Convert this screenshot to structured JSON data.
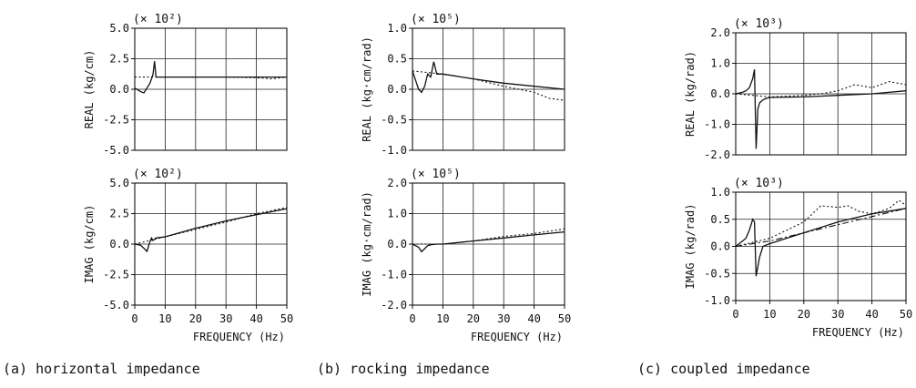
{
  "chart_data": [
    {
      "id": "a_real",
      "type": "line",
      "panel": "(a)",
      "multiplier": "(× 10²)",
      "ylabel": "REAL (kg/cm)",
      "ylim": [
        -5.0,
        5.0
      ],
      "yticks": [
        "5.0",
        "2.5",
        "0.0",
        "-2.5",
        "-5.0"
      ],
      "xlim": [
        0,
        50
      ],
      "xticks": [],
      "grid": true,
      "series": [
        {
          "style": "solid",
          "x": [
            0,
            2,
            3,
            4,
            5,
            6,
            6.5,
            7,
            8,
            10,
            20,
            30,
            40,
            45,
            50
          ],
          "y": [
            0.1,
            -0.2,
            -0.3,
            0.1,
            0.5,
            1.2,
            2.3,
            1.0,
            1.0,
            1.0,
            1.0,
            1.0,
            1.0,
            1.0,
            1.0
          ]
        },
        {
          "style": "dashed",
          "x": [
            0,
            10,
            20,
            30,
            40,
            45,
            50
          ],
          "y": [
            1.0,
            1.0,
            1.0,
            1.0,
            0.95,
            0.85,
            1.0
          ]
        }
      ]
    },
    {
      "id": "a_imag",
      "type": "line",
      "panel": "(a)",
      "multiplier": "(× 10²)",
      "ylabel": "IMAG (kg/cm)",
      "ylim": [
        -5.0,
        5.0
      ],
      "yticks": [
        "5.0",
        "2.5",
        "0.0",
        "-2.5",
        "-5.0"
      ],
      "xlim": [
        0,
        50
      ],
      "xticks": [
        "0",
        "10",
        "20",
        "30",
        "40",
        "50"
      ],
      "xlabel": "FREQUENCY (Hz)",
      "grid": true,
      "series": [
        {
          "style": "solid",
          "x": [
            0,
            2,
            4,
            5,
            5.5,
            6,
            7,
            10,
            20,
            30,
            40,
            50
          ],
          "y": [
            0.0,
            -0.1,
            -0.6,
            0.2,
            0.5,
            0.3,
            0.5,
            0.6,
            1.3,
            1.9,
            2.4,
            2.9
          ]
        },
        {
          "style": "dashed",
          "x": [
            0,
            10,
            20,
            30,
            40,
            50
          ],
          "y": [
            0.0,
            0.6,
            1.2,
            1.8,
            2.5,
            3.0
          ]
        }
      ]
    },
    {
      "id": "b_real",
      "type": "line",
      "panel": "(b)",
      "multiplier": "(× 10⁵)",
      "ylabel": "REAL (kg·cm/rad)",
      "ylim": [
        -1.0,
        1.0
      ],
      "yticks": [
        "1.0",
        "0.5",
        "0.0",
        "-0.5",
        "-1.0"
      ],
      "xlim": [
        0,
        50
      ],
      "xticks": [],
      "grid": true,
      "series": [
        {
          "style": "solid",
          "x": [
            0,
            2,
            3,
            4,
            5,
            6,
            7,
            8,
            10,
            20,
            30,
            40,
            50
          ],
          "y": [
            0.3,
            0.0,
            -0.05,
            0.05,
            0.25,
            0.2,
            0.45,
            0.25,
            0.25,
            0.17,
            0.1,
            0.05,
            0.0
          ]
        },
        {
          "style": "dashed",
          "x": [
            0,
            10,
            20,
            30,
            40,
            45,
            50
          ],
          "y": [
            0.3,
            0.25,
            0.17,
            0.05,
            -0.05,
            -0.15,
            -0.18
          ]
        }
      ]
    },
    {
      "id": "b_imag",
      "type": "line",
      "panel": "(b)",
      "multiplier": "(× 10⁵)",
      "ylabel": "IMAG (kg·cm/rad)",
      "ylim": [
        -2.0,
        2.0
      ],
      "yticks": [
        "2.0",
        "1.0",
        "0.0",
        "-1.0",
        "-2.0"
      ],
      "xlim": [
        0,
        50
      ],
      "xticks": [
        "0",
        "10",
        "20",
        "30",
        "40",
        "50"
      ],
      "xlabel": "FREQUENCY (Hz)",
      "grid": true,
      "series": [
        {
          "style": "solid",
          "x": [
            0,
            2,
            3,
            4,
            5,
            6,
            8,
            10,
            20,
            30,
            40,
            50
          ],
          "y": [
            0.0,
            -0.1,
            -0.25,
            -0.15,
            -0.05,
            -0.02,
            0.0,
            0.0,
            0.1,
            0.2,
            0.3,
            0.4
          ]
        },
        {
          "style": "dashed",
          "x": [
            0,
            10,
            20,
            30,
            40,
            50
          ],
          "y": [
            0.0,
            0.0,
            0.1,
            0.25,
            0.35,
            0.5
          ]
        }
      ]
    },
    {
      "id": "c_real",
      "type": "line",
      "panel": "(c)",
      "multiplier": "(× 10³)",
      "ylabel": "REAL (kg/rad)",
      "ylim": [
        -2.0,
        2.0
      ],
      "yticks": [
        "2.0",
        "1.0",
        "0.0",
        "-1.0",
        "-2.0"
      ],
      "xlim": [
        0,
        50
      ],
      "xticks": [],
      "grid": true,
      "series": [
        {
          "style": "solid",
          "x": [
            0,
            2,
            3,
            4,
            5,
            5.5,
            6,
            6.5,
            7,
            8,
            9,
            10,
            20,
            30,
            40,
            50
          ],
          "y": [
            0.0,
            0.05,
            0.1,
            0.2,
            0.5,
            0.8,
            -1.8,
            -0.5,
            -0.3,
            -0.2,
            -0.15,
            -0.12,
            -0.1,
            -0.05,
            0.0,
            0.1
          ]
        },
        {
          "style": "dashed",
          "x": [
            0,
            10,
            20,
            25,
            30,
            35,
            40,
            45,
            50
          ],
          "y": [
            0.0,
            -0.1,
            -0.05,
            0.0,
            0.1,
            0.3,
            0.2,
            0.4,
            0.3
          ]
        }
      ]
    },
    {
      "id": "c_imag",
      "type": "line",
      "panel": "(c)",
      "multiplier": "(× 10³)",
      "ylabel": "IMAG (kg/rad)",
      "ylim": [
        -1.0,
        1.0
      ],
      "yticks": [
        "1.0",
        "0.5",
        "0.0",
        "-0.5",
        "-1.0"
      ],
      "xlim": [
        0,
        50
      ],
      "xticks": [
        "0",
        "10",
        "20",
        "30",
        "40",
        "50"
      ],
      "xlabel": "FREQUENCY (Hz)",
      "grid": true,
      "series": [
        {
          "style": "solid",
          "x": [
            0,
            2,
            3,
            4,
            5,
            5.5,
            6,
            7,
            8,
            10,
            20,
            30,
            40,
            50
          ],
          "y": [
            0.0,
            0.1,
            0.15,
            0.3,
            0.5,
            0.45,
            -0.55,
            -0.2,
            0.0,
            0.05,
            0.25,
            0.45,
            0.6,
            0.7
          ]
        },
        {
          "style": "dashed",
          "x": [
            0,
            10,
            20,
            25,
            30,
            33,
            36,
            40,
            45,
            48,
            50
          ],
          "y": [
            0.0,
            0.15,
            0.45,
            0.75,
            0.72,
            0.75,
            0.65,
            0.6,
            0.7,
            0.85,
            0.75
          ]
        },
        {
          "style": "dashdot",
          "x": [
            0,
            10,
            20,
            30,
            40,
            50
          ],
          "y": [
            0.0,
            0.1,
            0.25,
            0.4,
            0.55,
            0.7
          ]
        }
      ]
    }
  ],
  "captions": {
    "a": "(a) horizontal impedance",
    "b": "(b) rocking impedance",
    "c": "(c) coupled impedance"
  }
}
